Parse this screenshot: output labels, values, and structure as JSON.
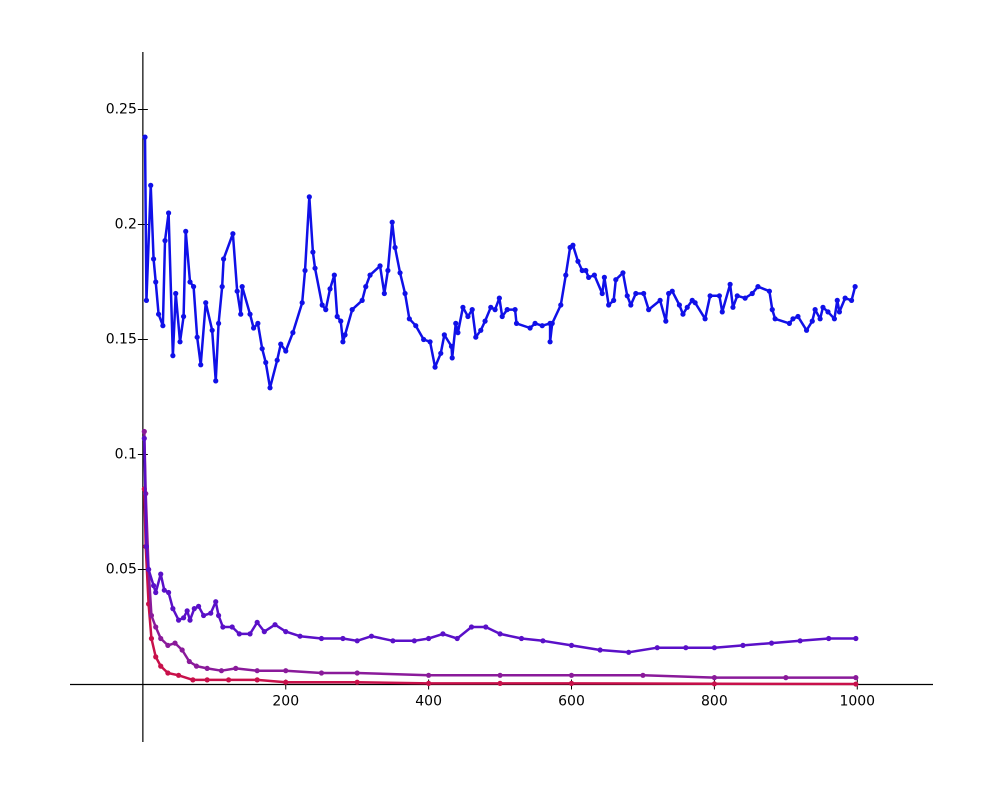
{
  "chart_data": {
    "type": "line",
    "xlim": [
      -102,
      1106
    ],
    "ylim": [
      -0.025,
      0.275
    ],
    "xticks": [
      200,
      400,
      600,
      800,
      1000
    ],
    "yticks": [
      0.05,
      0.1,
      0.15,
      0.2,
      0.25
    ],
    "series": [
      {
        "color": "#1010e8",
        "x": [
          3,
          5,
          11,
          15,
          18,
          22,
          28,
          31,
          36,
          42,
          46,
          52,
          57,
          60,
          66,
          71,
          76,
          81,
          88,
          97,
          102,
          106,
          111,
          113,
          126,
          132,
          137,
          139,
          150,
          155,
          161,
          167,
          172,
          178,
          188,
          193,
          200,
          210,
          223,
          227,
          233,
          238,
          241,
          251,
          256,
          262,
          268,
          272,
          277,
          280,
          283,
          293,
          307,
          312,
          318,
          332,
          338,
          343,
          349,
          353,
          360,
          367,
          373,
          382,
          393,
          402,
          409,
          417,
          422,
          432,
          433,
          438,
          441,
          448,
          455,
          461,
          466,
          473,
          479,
          487,
          493,
          499,
          503,
          510,
          521,
          523,
          542,
          549,
          559,
          570,
          570,
          573,
          585,
          592,
          598,
          602,
          609,
          615,
          620,
          624,
          632,
          643,
          646,
          652,
          659,
          662,
          672,
          678,
          683,
          690,
          701,
          708,
          724,
          732,
          736,
          741,
          751,
          756,
          762,
          769,
          773,
          787,
          794,
          807,
          811,
          822,
          826,
          832,
          843,
          853,
          861,
          877,
          881,
          885,
          905,
          910,
          917,
          929,
          937,
          941,
          948,
          952,
          959,
          968,
          972,
          975,
          983,
          992,
          997
        ],
        "values": [
          0.238,
          0.167,
          0.217,
          0.185,
          0.175,
          0.161,
          0.156,
          0.193,
          0.205,
          0.143,
          0.17,
          0.149,
          0.16,
          0.197,
          0.175,
          0.173,
          0.151,
          0.139,
          0.166,
          0.154,
          0.132,
          0.157,
          0.173,
          0.185,
          0.196,
          0.171,
          0.161,
          0.173,
          0.161,
          0.155,
          0.157,
          0.146,
          0.14,
          0.129,
          0.141,
          0.148,
          0.145,
          0.153,
          0.166,
          0.18,
          0.212,
          0.188,
          0.181,
          0.165,
          0.163,
          0.172,
          0.178,
          0.16,
          0.158,
          0.149,
          0.152,
          0.163,
          0.167,
          0.173,
          0.178,
          0.182,
          0.17,
          0.18,
          0.201,
          0.19,
          0.179,
          0.17,
          0.159,
          0.156,
          0.15,
          0.149,
          0.138,
          0.144,
          0.152,
          0.147,
          0.142,
          0.157,
          0.153,
          0.164,
          0.16,
          0.163,
          0.151,
          0.154,
          0.158,
          0.164,
          0.163,
          0.168,
          0.16,
          0.163,
          0.163,
          0.157,
          0.155,
          0.157,
          0.156,
          0.157,
          0.149,
          0.157,
          0.165,
          0.178,
          0.19,
          0.191,
          0.184,
          0.18,
          0.18,
          0.177,
          0.178,
          0.17,
          0.177,
          0.165,
          0.167,
          0.176,
          0.179,
          0.169,
          0.165,
          0.17,
          0.17,
          0.163,
          0.167,
          0.158,
          0.17,
          0.171,
          0.165,
          0.161,
          0.164,
          0.167,
          0.166,
          0.159,
          0.169,
          0.169,
          0.162,
          0.174,
          0.164,
          0.169,
          0.168,
          0.17,
          0.173,
          0.171,
          0.163,
          0.159,
          0.157,
          0.159,
          0.16,
          0.154,
          0.158,
          0.163,
          0.159,
          0.164,
          0.162,
          0.159,
          0.167,
          0.162,
          0.168,
          0.167,
          0.173
        ]
      },
      {
        "color": "#5a10c8",
        "x": [
          2,
          5,
          8,
          15,
          18,
          25,
          30,
          36,
          42,
          50,
          57,
          62,
          66,
          72,
          78,
          85,
          95,
          102,
          106,
          112,
          125,
          135,
          150,
          160,
          170,
          185,
          200,
          220,
          250,
          280,
          300,
          320,
          350,
          380,
          400,
          420,
          440,
          460,
          480,
          500,
          530,
          560,
          600,
          640,
          680,
          720,
          760,
          800,
          840,
          880,
          920,
          960,
          998
        ],
        "values": [
          0.107,
          0.06,
          0.05,
          0.043,
          0.04,
          0.048,
          0.041,
          0.04,
          0.033,
          0.028,
          0.029,
          0.032,
          0.028,
          0.033,
          0.034,
          0.03,
          0.031,
          0.036,
          0.03,
          0.025,
          0.025,
          0.022,
          0.022,
          0.027,
          0.023,
          0.026,
          0.023,
          0.021,
          0.02,
          0.02,
          0.019,
          0.021,
          0.019,
          0.019,
          0.02,
          0.022,
          0.02,
          0.025,
          0.025,
          0.022,
          0.02,
          0.019,
          0.017,
          0.015,
          0.014,
          0.016,
          0.016,
          0.016,
          0.017,
          0.018,
          0.019,
          0.02,
          0.02
        ]
      },
      {
        "color": "#8a1a9a",
        "x": [
          2,
          4,
          8,
          12,
          18,
          25,
          35,
          45,
          55,
          65,
          75,
          90,
          110,
          130,
          160,
          200,
          250,
          300,
          400,
          500,
          600,
          700,
          800,
          900,
          998
        ],
        "values": [
          0.11,
          0.083,
          0.05,
          0.03,
          0.025,
          0.02,
          0.017,
          0.018,
          0.015,
          0.01,
          0.008,
          0.007,
          0.006,
          0.007,
          0.006,
          0.006,
          0.005,
          0.005,
          0.004,
          0.004,
          0.004,
          0.004,
          0.003,
          0.003,
          0.003
        ]
      },
      {
        "color": "#c8104a",
        "x": [
          2,
          4,
          8,
          12,
          18,
          25,
          35,
          50,
          70,
          90,
          120,
          160,
          200,
          300,
          400,
          500,
          600,
          800,
          998
        ],
        "values": [
          0.085,
          0.06,
          0.035,
          0.02,
          0.012,
          0.008,
          0.005,
          0.004,
          0.002,
          0.002,
          0.002,
          0.002,
          0.001,
          0.001,
          0.0005,
          0.0005,
          0.0005,
          0.0003,
          0.0002
        ]
      }
    ]
  }
}
